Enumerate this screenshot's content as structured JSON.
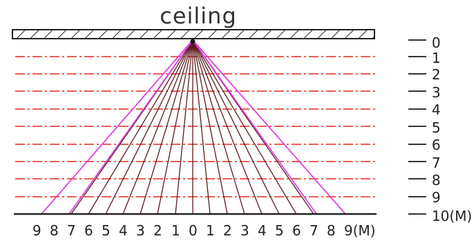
{
  "title": "ceiling",
  "level_labels": [
    "0",
    "1",
    "2",
    "3",
    "4",
    "5",
    "6",
    "7",
    "8",
    "9",
    "10(M)"
  ],
  "distance_labels": [
    "9",
    "8",
    "7",
    "6",
    "5",
    "4",
    "3",
    "2",
    "1",
    "0",
    "1",
    "2",
    "3",
    "4",
    "5",
    "6",
    "7",
    "8",
    "9(M)"
  ],
  "colors": {
    "guide_lines": "#e8453c",
    "outer_rays": "#e040e0",
    "center_rays": "#5a1a1a",
    "ceiling_outline": "#222222"
  }
}
